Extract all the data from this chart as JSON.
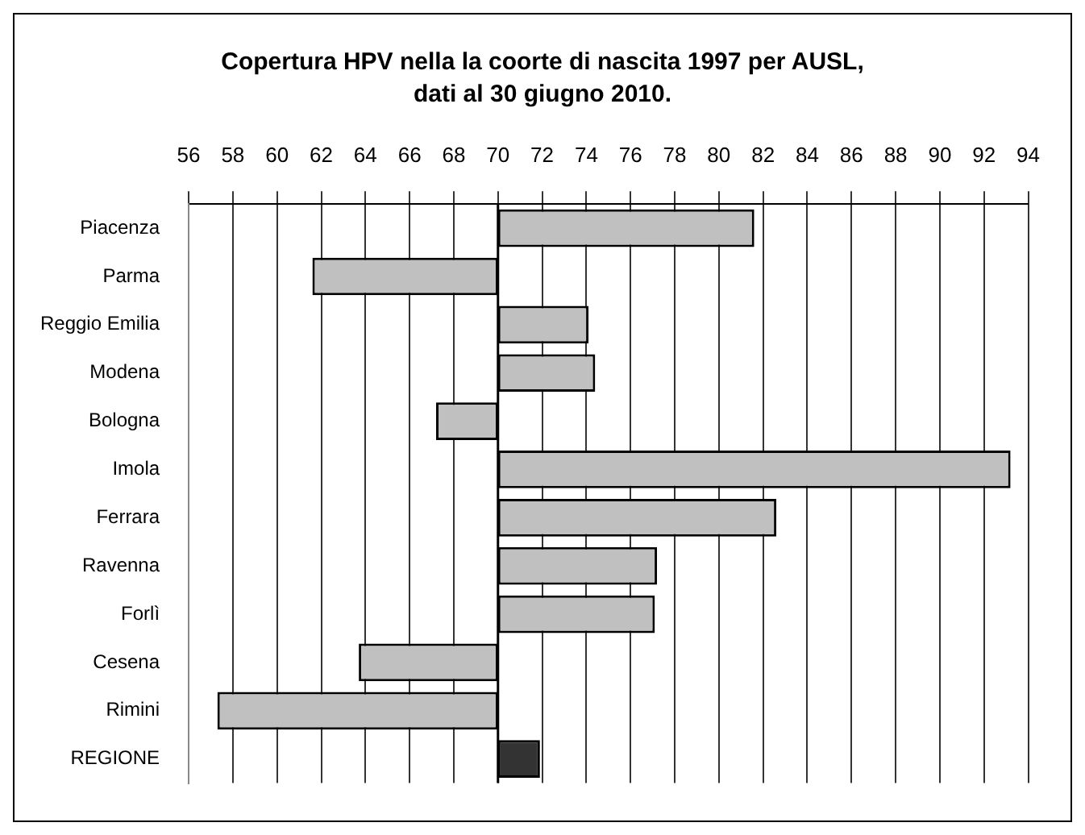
{
  "chart_data": {
    "type": "bar",
    "orientation": "horizontal",
    "title": "Copertura HPV nella la coorte di nascita 1997 per AUSL,  dati al 30 giugno 2010.",
    "categories": [
      "Piacenza",
      "Parma",
      "Reggio Emilia",
      "Modena",
      "Bologna",
      "Imola",
      "Ferrara",
      "Ravenna",
      "Forlì",
      "Cesena",
      "Rimini",
      "REGIONE"
    ],
    "base": [
      70,
      70,
      70,
      70,
      70,
      70,
      70,
      70,
      70,
      70,
      70,
      70
    ],
    "values": [
      11.6,
      -8.4,
      4.1,
      4.4,
      -2.8,
      23.2,
      12.6,
      7.2,
      7.1,
      -6.3,
      -12.7,
      1.9
    ],
    "colors": [
      "#c0c0c0",
      "#c0c0c0",
      "#c0c0c0",
      "#c0c0c0",
      "#c0c0c0",
      "#c0c0c0",
      "#c0c0c0",
      "#c0c0c0",
      "#c0c0c0",
      "#c0c0c0",
      "#c0c0c0",
      "#333333"
    ],
    "xlim": [
      56,
      94
    ],
    "xticks": [
      56,
      58,
      60,
      62,
      64,
      66,
      68,
      70,
      72,
      74,
      76,
      78,
      80,
      82,
      84,
      86,
      88,
      90,
      92,
      94
    ],
    "ref_lines": [
      {
        "axis": "x",
        "value": 70,
        "color": "#000000"
      }
    ],
    "grid": "x",
    "legend": false
  }
}
